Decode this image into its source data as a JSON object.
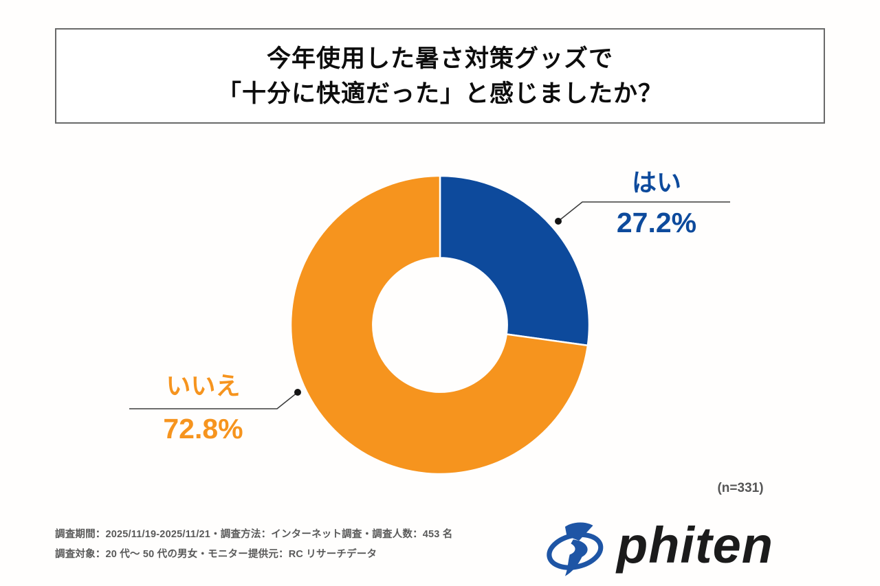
{
  "title": {
    "line1": "今年使用した暑さ対策グッズで",
    "line2": "「十分に快適だった」と感じましたか？"
  },
  "chart_data": {
    "type": "pie",
    "donut": true,
    "inner_radius_ratio": 0.45,
    "title": "今年使用した暑さ対策グッズで「十分に快適だった」と感じましたか？",
    "categories": [
      "はい",
      "いいえ"
    ],
    "values": [
      27.2,
      72.8
    ],
    "value_labels": [
      "27.2%",
      "72.8%"
    ],
    "colors": [
      "#0D4A9C",
      "#F6941E"
    ],
    "start_angle_deg": 0,
    "direction": "clockwise",
    "legend": "none",
    "sample_size_label": "(n=331)"
  },
  "footnote": {
    "line1": "調査期間：2025/11/19-2025/11/21・調査方法：インターネット調査・調査人数：453 名",
    "line2": "調査対象：20 代〜 50 代の男女・モニター提供元：RC リサーチデータ"
  },
  "logo": {
    "brand": "phiten",
    "icon_color": "#1E55A5",
    "text_color": "#1B1B1B"
  }
}
